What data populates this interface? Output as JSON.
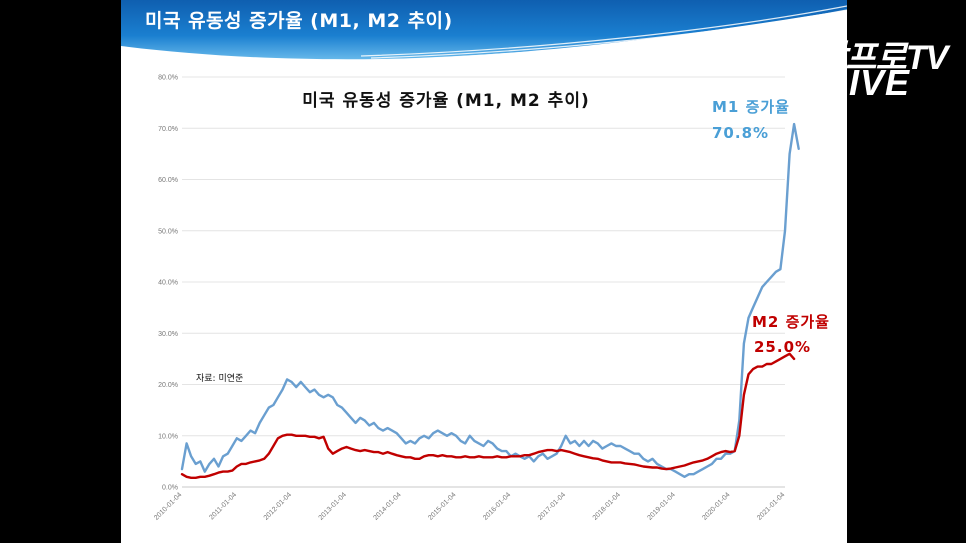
{
  "slide": {
    "title": "미국 유동성 증가율 (M1, M2 추이)",
    "watermark_top": "삼프로TV",
    "watermark_bottom": "LIVE"
  },
  "colors": {
    "banner": "#1a72c2",
    "m1": "#6a9fd0",
    "m2": "#c00000",
    "m1_label": "#4a9fd6",
    "m2_label": "#c00000"
  },
  "chart_data": {
    "type": "line",
    "title": "미국 유동성 증가율 (M1, M2 추이)",
    "source": "자료: 미연준",
    "x_ticks": [
      "2010-01-04",
      "2011-01-04",
      "2012-01-04",
      "2013-01-04",
      "2014-01-04",
      "2015-01-04",
      "2016-01-04",
      "2017-01-04",
      "2018-01-04",
      "2019-01-04",
      "2020-01-04",
      "2021-01-04"
    ],
    "y_ticks": [
      "0.0%",
      "10.0%",
      "20.0%",
      "30.0%",
      "40.0%",
      "50.0%",
      "60.0%",
      "70.0%",
      "80.0%"
    ],
    "ylim": [
      0,
      80
    ],
    "grid": true,
    "series": [
      {
        "name": "M1",
        "color": "#6a9fd0",
        "points": [
          [
            "2010-01",
            3.5
          ],
          [
            "2010-02",
            8.5
          ],
          [
            "2010-03",
            6.0
          ],
          [
            "2010-04",
            4.5
          ],
          [
            "2010-05",
            5.0
          ],
          [
            "2010-06",
            3.0
          ],
          [
            "2010-07",
            4.5
          ],
          [
            "2010-08",
            5.5
          ],
          [
            "2010-09",
            4.0
          ],
          [
            "2010-10",
            6.0
          ],
          [
            "2010-11",
            6.5
          ],
          [
            "2010-12",
            8.0
          ],
          [
            "2011-01",
            9.5
          ],
          [
            "2011-02",
            9.0
          ],
          [
            "2011-03",
            10.0
          ],
          [
            "2011-04",
            11.0
          ],
          [
            "2011-05",
            10.5
          ],
          [
            "2011-06",
            12.5
          ],
          [
            "2011-07",
            14.0
          ],
          [
            "2011-08",
            15.5
          ],
          [
            "2011-09",
            16.0
          ],
          [
            "2011-10",
            17.5
          ],
          [
            "2011-11",
            19.0
          ],
          [
            "2011-12",
            21.0
          ],
          [
            "2012-01",
            20.5
          ],
          [
            "2012-02",
            19.5
          ],
          [
            "2012-03",
            20.5
          ],
          [
            "2012-04",
            19.5
          ],
          [
            "2012-05",
            18.5
          ],
          [
            "2012-06",
            19.0
          ],
          [
            "2012-07",
            18.0
          ],
          [
            "2012-08",
            17.5
          ],
          [
            "2012-09",
            18.0
          ],
          [
            "2012-10",
            17.5
          ],
          [
            "2012-11",
            16.0
          ],
          [
            "2012-12",
            15.5
          ],
          [
            "2013-01",
            14.5
          ],
          [
            "2013-02",
            13.5
          ],
          [
            "2013-03",
            12.5
          ],
          [
            "2013-04",
            13.5
          ],
          [
            "2013-05",
            13.0
          ],
          [
            "2013-06",
            12.0
          ],
          [
            "2013-07",
            12.5
          ],
          [
            "2013-08",
            11.5
          ],
          [
            "2013-09",
            11.0
          ],
          [
            "2013-10",
            11.5
          ],
          [
            "2013-11",
            11.0
          ],
          [
            "2013-12",
            10.5
          ],
          [
            "2014-01",
            9.5
          ],
          [
            "2014-02",
            8.5
          ],
          [
            "2014-03",
            9.0
          ],
          [
            "2014-04",
            8.5
          ],
          [
            "2014-05",
            9.5
          ],
          [
            "2014-06",
            10.0
          ],
          [
            "2014-07",
            9.5
          ],
          [
            "2014-08",
            10.5
          ],
          [
            "2014-09",
            11.0
          ],
          [
            "2014-10",
            10.5
          ],
          [
            "2014-11",
            10.0
          ],
          [
            "2014-12",
            10.5
          ],
          [
            "2015-01",
            10.0
          ],
          [
            "2015-02",
            9.0
          ],
          [
            "2015-03",
            8.5
          ],
          [
            "2015-04",
            10.0
          ],
          [
            "2015-05",
            9.0
          ],
          [
            "2015-06",
            8.5
          ],
          [
            "2015-07",
            8.0
          ],
          [
            "2015-08",
            9.0
          ],
          [
            "2015-09",
            8.5
          ],
          [
            "2015-10",
            7.5
          ],
          [
            "2015-11",
            7.0
          ],
          [
            "2015-12",
            7.0
          ],
          [
            "2016-01",
            6.0
          ],
          [
            "2016-02",
            6.5
          ],
          [
            "2016-03",
            6.0
          ],
          [
            "2016-04",
            5.5
          ],
          [
            "2016-05",
            6.0
          ],
          [
            "2016-06",
            5.0
          ],
          [
            "2016-07",
            6.0
          ],
          [
            "2016-08",
            6.5
          ],
          [
            "2016-09",
            5.5
          ],
          [
            "2016-10",
            6.0
          ],
          [
            "2016-11",
            6.5
          ],
          [
            "2016-12",
            8.0
          ],
          [
            "2017-01",
            10.0
          ],
          [
            "2017-02",
            8.5
          ],
          [
            "2017-03",
            9.0
          ],
          [
            "2017-04",
            8.0
          ],
          [
            "2017-05",
            9.0
          ],
          [
            "2017-06",
            8.0
          ],
          [
            "2017-07",
            9.0
          ],
          [
            "2017-08",
            8.5
          ],
          [
            "2017-09",
            7.5
          ],
          [
            "2017-10",
            8.0
          ],
          [
            "2017-11",
            8.5
          ],
          [
            "2017-12",
            8.0
          ],
          [
            "2018-01",
            8.0
          ],
          [
            "2018-02",
            7.5
          ],
          [
            "2018-03",
            7.0
          ],
          [
            "2018-04",
            6.5
          ],
          [
            "2018-05",
            6.5
          ],
          [
            "2018-06",
            5.5
          ],
          [
            "2018-07",
            5.0
          ],
          [
            "2018-08",
            5.5
          ],
          [
            "2018-09",
            4.5
          ],
          [
            "2018-10",
            4.0
          ],
          [
            "2018-11",
            3.5
          ],
          [
            "2018-12",
            3.5
          ],
          [
            "2019-01",
            3.0
          ],
          [
            "2019-02",
            2.5
          ],
          [
            "2019-03",
            2.0
          ],
          [
            "2019-04",
            2.5
          ],
          [
            "2019-05",
            2.5
          ],
          [
            "2019-06",
            3.0
          ],
          [
            "2019-07",
            3.5
          ],
          [
            "2019-08",
            4.0
          ],
          [
            "2019-09",
            4.5
          ],
          [
            "2019-10",
            5.5
          ],
          [
            "2019-11",
            5.5
          ],
          [
            "2019-12",
            6.5
          ],
          [
            "2020-01",
            6.5
          ],
          [
            "2020-02",
            7.0
          ],
          [
            "2020-03",
            13.0
          ],
          [
            "2020-04",
            28.0
          ],
          [
            "2020-05",
            33.0
          ],
          [
            "2020-06",
            35.0
          ],
          [
            "2020-07",
            37.0
          ],
          [
            "2020-08",
            39.0
          ],
          [
            "2020-09",
            40.0
          ],
          [
            "2020-10",
            41.0
          ],
          [
            "2020-11",
            42.0
          ],
          [
            "2020-12",
            42.5
          ],
          [
            "2021-01",
            50.0
          ],
          [
            "2021-02",
            65.0
          ],
          [
            "2021-03",
            70.8
          ],
          [
            "2021-04",
            66.0
          ]
        ]
      },
      {
        "name": "M2",
        "color": "#c00000",
        "points": [
          [
            "2010-01",
            2.5
          ],
          [
            "2010-02",
            2.0
          ],
          [
            "2010-03",
            1.8
          ],
          [
            "2010-04",
            1.8
          ],
          [
            "2010-05",
            2.0
          ],
          [
            "2010-06",
            2.0
          ],
          [
            "2010-07",
            2.2
          ],
          [
            "2010-08",
            2.5
          ],
          [
            "2010-09",
            2.8
          ],
          [
            "2010-10",
            3.0
          ],
          [
            "2010-11",
            3.0
          ],
          [
            "2010-12",
            3.2
          ],
          [
            "2011-01",
            4.0
          ],
          [
            "2011-02",
            4.5
          ],
          [
            "2011-03",
            4.5
          ],
          [
            "2011-04",
            4.8
          ],
          [
            "2011-05",
            5.0
          ],
          [
            "2011-06",
            5.2
          ],
          [
            "2011-07",
            5.5
          ],
          [
            "2011-08",
            6.5
          ],
          [
            "2011-09",
            8.0
          ],
          [
            "2011-10",
            9.5
          ],
          [
            "2011-11",
            10.0
          ],
          [
            "2011-12",
            10.2
          ],
          [
            "2012-01",
            10.2
          ],
          [
            "2012-02",
            10.0
          ],
          [
            "2012-03",
            10.0
          ],
          [
            "2012-04",
            10.0
          ],
          [
            "2012-05",
            9.8
          ],
          [
            "2012-06",
            9.8
          ],
          [
            "2012-07",
            9.5
          ],
          [
            "2012-08",
            9.8
          ],
          [
            "2012-09",
            7.5
          ],
          [
            "2012-10",
            6.5
          ],
          [
            "2012-11",
            7.0
          ],
          [
            "2012-12",
            7.5
          ],
          [
            "2013-01",
            7.8
          ],
          [
            "2013-02",
            7.5
          ],
          [
            "2013-03",
            7.2
          ],
          [
            "2013-04",
            7.0
          ],
          [
            "2013-05",
            7.2
          ],
          [
            "2013-06",
            7.0
          ],
          [
            "2013-07",
            6.8
          ],
          [
            "2013-08",
            6.8
          ],
          [
            "2013-09",
            6.5
          ],
          [
            "2013-10",
            6.8
          ],
          [
            "2013-11",
            6.5
          ],
          [
            "2013-12",
            6.2
          ],
          [
            "2014-01",
            6.0
          ],
          [
            "2014-02",
            5.8
          ],
          [
            "2014-03",
            5.8
          ],
          [
            "2014-04",
            5.5
          ],
          [
            "2014-05",
            5.5
          ],
          [
            "2014-06",
            6.0
          ],
          [
            "2014-07",
            6.2
          ],
          [
            "2014-08",
            6.2
          ],
          [
            "2014-09",
            6.0
          ],
          [
            "2014-10",
            6.2
          ],
          [
            "2014-11",
            6.0
          ],
          [
            "2014-12",
            6.0
          ],
          [
            "2015-01",
            5.8
          ],
          [
            "2015-02",
            5.8
          ],
          [
            "2015-03",
            6.0
          ],
          [
            "2015-04",
            5.8
          ],
          [
            "2015-05",
            5.8
          ],
          [
            "2015-06",
            6.0
          ],
          [
            "2015-07",
            5.8
          ],
          [
            "2015-08",
            5.8
          ],
          [
            "2015-09",
            5.8
          ],
          [
            "2015-10",
            6.0
          ],
          [
            "2015-11",
            5.8
          ],
          [
            "2015-12",
            5.8
          ],
          [
            "2016-01",
            6.0
          ],
          [
            "2016-02",
            6.0
          ],
          [
            "2016-03",
            6.0
          ],
          [
            "2016-04",
            6.2
          ],
          [
            "2016-05",
            6.2
          ],
          [
            "2016-06",
            6.5
          ],
          [
            "2016-07",
            6.8
          ],
          [
            "2016-08",
            7.0
          ],
          [
            "2016-09",
            7.2
          ],
          [
            "2016-10",
            7.2
          ],
          [
            "2016-11",
            7.0
          ],
          [
            "2016-12",
            7.2
          ],
          [
            "2017-01",
            7.0
          ],
          [
            "2017-02",
            6.8
          ],
          [
            "2017-03",
            6.5
          ],
          [
            "2017-04",
            6.2
          ],
          [
            "2017-05",
            6.0
          ],
          [
            "2017-06",
            5.8
          ],
          [
            "2017-07",
            5.6
          ],
          [
            "2017-08",
            5.5
          ],
          [
            "2017-09",
            5.2
          ],
          [
            "2017-10",
            5.0
          ],
          [
            "2017-11",
            4.8
          ],
          [
            "2017-12",
            4.8
          ],
          [
            "2018-01",
            4.8
          ],
          [
            "2018-02",
            4.6
          ],
          [
            "2018-03",
            4.5
          ],
          [
            "2018-04",
            4.4
          ],
          [
            "2018-05",
            4.2
          ],
          [
            "2018-06",
            4.0
          ],
          [
            "2018-07",
            3.9
          ],
          [
            "2018-08",
            3.8
          ],
          [
            "2018-09",
            3.8
          ],
          [
            "2018-10",
            3.6
          ],
          [
            "2018-11",
            3.5
          ],
          [
            "2018-12",
            3.6
          ],
          [
            "2019-01",
            3.8
          ],
          [
            "2019-02",
            4.0
          ],
          [
            "2019-03",
            4.2
          ],
          [
            "2019-04",
            4.5
          ],
          [
            "2019-05",
            4.8
          ],
          [
            "2019-06",
            5.0
          ],
          [
            "2019-07",
            5.2
          ],
          [
            "2019-08",
            5.5
          ],
          [
            "2019-09",
            6.0
          ],
          [
            "2019-10",
            6.5
          ],
          [
            "2019-11",
            6.8
          ],
          [
            "2019-12",
            7.0
          ],
          [
            "2020-01",
            6.8
          ],
          [
            "2020-02",
            7.0
          ],
          [
            "2020-03",
            10.0
          ],
          [
            "2020-04",
            18.0
          ],
          [
            "2020-05",
            22.0
          ],
          [
            "2020-06",
            23.0
          ],
          [
            "2020-07",
            23.5
          ],
          [
            "2020-08",
            23.5
          ],
          [
            "2020-09",
            24.0
          ],
          [
            "2020-10",
            24.0
          ],
          [
            "2020-11",
            24.5
          ],
          [
            "2020-12",
            25.0
          ],
          [
            "2021-01",
            25.5
          ],
          [
            "2021-02",
            26.0
          ],
          [
            "2021-03",
            25.0
          ]
        ]
      }
    ],
    "annotations": {
      "m1_label": "M1 증가율",
      "m1_value": "70.8%",
      "m2_label": "M2 증가율",
      "m2_value": "25.0%"
    }
  }
}
